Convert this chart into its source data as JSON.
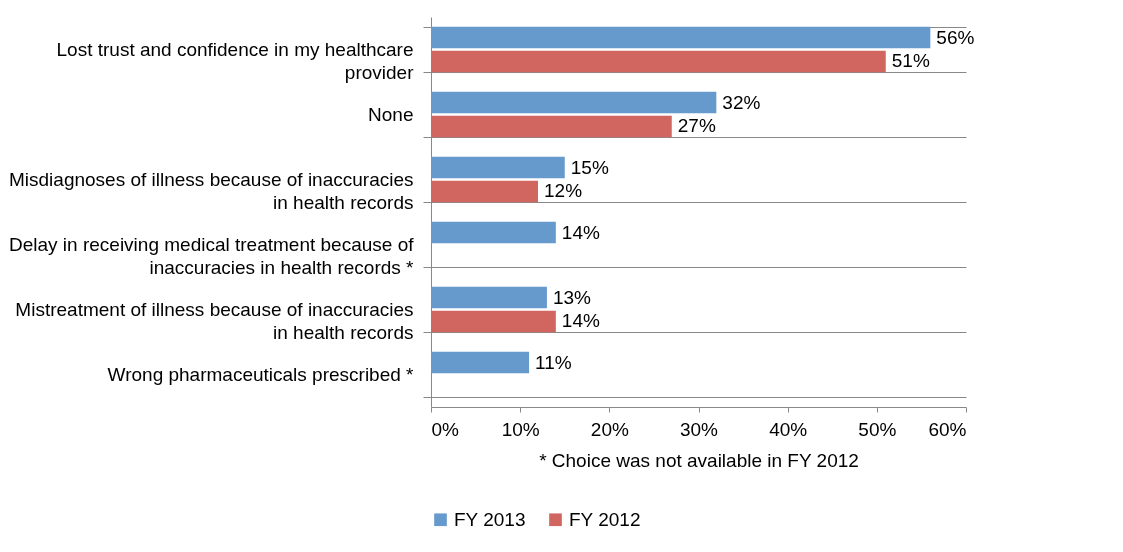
{
  "chart_data": {
    "type": "bar",
    "orientation": "horizontal",
    "categories": [
      "Lost trust and confidence in my healthcare provider",
      "None",
      "Misdiagnoses of illness because of inaccuracies in health records",
      "Delay in receiving medical treatment because of inaccuracies in health records *",
      "Mistreatment of illness because of inaccuracies in health records",
      "Wrong pharmaceuticals prescribed *"
    ],
    "series": [
      {
        "name": "FY 2013",
        "color": "#6699cc",
        "values": [
          56,
          32,
          15,
          14,
          13,
          11
        ],
        "value_labels": [
          "56%",
          "32%",
          "15%",
          "14%",
          "13%",
          "11%"
        ]
      },
      {
        "name": "FY 2012",
        "color": "#d0665f",
        "values": [
          51,
          27,
          12,
          null,
          14,
          null
        ],
        "value_labels": [
          "51%",
          "27%",
          "12%",
          null,
          "14%",
          null
        ]
      }
    ],
    "xlim": [
      0,
      60
    ],
    "xticks": [
      {
        "value": 0,
        "label": "0%"
      },
      {
        "value": 10,
        "label": "10%"
      },
      {
        "value": 20,
        "label": "20%"
      },
      {
        "value": 30,
        "label": "30%"
      },
      {
        "value": 40,
        "label": "40%"
      },
      {
        "value": 50,
        "label": "50%"
      },
      {
        "value": 60,
        "label": "60%"
      }
    ],
    "xlabel": "* Choice was not available in FY 2012",
    "grid": "y",
    "legend": "bottom"
  }
}
